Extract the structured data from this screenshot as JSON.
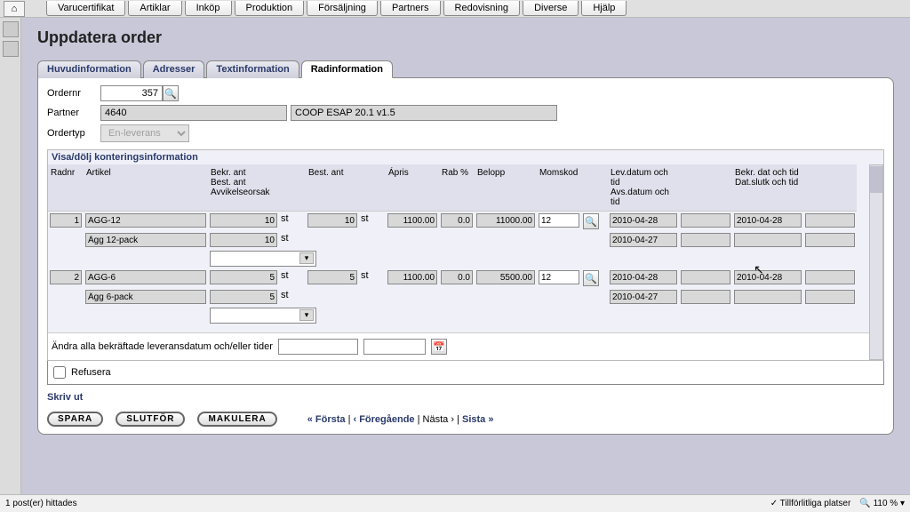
{
  "top_tabs": [
    "Varucertifikat",
    "Artiklar",
    "Inköp",
    "Produktion",
    "Försäljning",
    "Partners",
    "Redovisning",
    "Diverse",
    "Hjälp"
  ],
  "page_title": "Uppdatera order",
  "sub_tabs": [
    "Huvudinformation",
    "Adresser",
    "Textinformation",
    "Radinformation"
  ],
  "active_sub_tab": 3,
  "form": {
    "ordernr_label": "Ordernr",
    "ordernr_value": "357",
    "partner_label": "Partner",
    "partner_code": "4640",
    "partner_desc": "COOP ESAP 20.1 v1.5",
    "ordertyp_label": "Ordertyp",
    "ordertyp_value": "En-leverans"
  },
  "grid": {
    "title": "Visa/dölj konteringsinformation",
    "headers": {
      "radnr": "Radnr",
      "artikel": "Artikel",
      "bekr_ant": "Bekr. ant\nBest. ant\nAvvikelseorsak",
      "best_ant": "Best. ant",
      "apris": "Ápris",
      "rab": "Rab %",
      "belopp": "Belopp",
      "momskod": "Momskod",
      "lev_datum": "Lev.datum och tid\nAvs.datum och tid",
      "bekr_dat": "Bekr. dat och tid\nDat.slutk och tid"
    },
    "rows": [
      {
        "radnr": "1",
        "artikel": "AGG-12",
        "artikel_desc": "Ägg 12-pack",
        "bekr_ant": "10",
        "best_ant_disp": "10",
        "unit": "st",
        "best_ant": "10",
        "apris": "1100.00",
        "rab": "0.0",
        "belopp": "11000.00",
        "momskod": "12",
        "lev_datum": "2010-04-28",
        "avs_datum": "2010-04-27",
        "bekr_dat": "2010-04-28"
      },
      {
        "radnr": "2",
        "artikel": "AGG-6",
        "artikel_desc": "Ägg 6-pack",
        "bekr_ant": "5",
        "best_ant_disp": "5",
        "unit": "st",
        "best_ant": "5",
        "apris": "1100.00",
        "rab": "0.0",
        "belopp": "5500.00",
        "momskod": "12",
        "lev_datum": "2010-04-28",
        "avs_datum": "2010-04-27",
        "bekr_dat": "2010-04-28"
      }
    ]
  },
  "bulk_label": "Ändra alla bekräftade leveransdatum och/eller tider",
  "refusera_label": "Refusera",
  "skriv_ut": "Skriv ut",
  "buttons": {
    "spara": "SPARA",
    "slutfor": "SLUTFÖR",
    "makulera": "MAKULERA"
  },
  "nav": {
    "first": "« Första",
    "prev": "‹ Föregående",
    "next": "Nästa ›",
    "last": "Sista »"
  },
  "status": {
    "left": "1 post(er) hittades",
    "trusted": "Tillförlitliga platser",
    "zoom": "110 %"
  }
}
